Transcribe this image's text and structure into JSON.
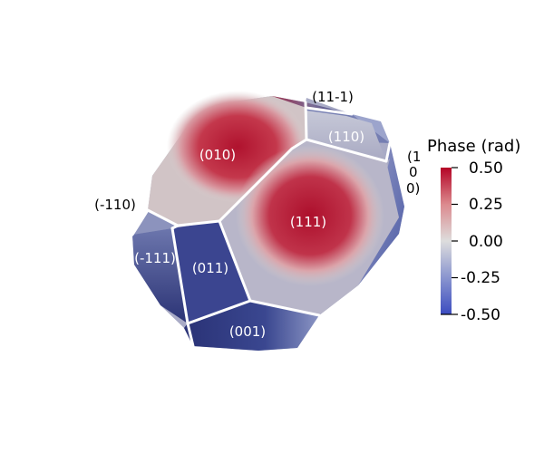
{
  "facet_labels": {
    "f010": "(010)",
    "f111": "(111)",
    "f110": "(110)",
    "f11m1": "(11-1)",
    "fm110": "(-110)",
    "fm111": "(-111)",
    "f011": "(011)",
    "f001": "(001)",
    "side_1": "(1",
    "side_2": "0",
    "side_3": "0)"
  },
  "colorbar": {
    "title": "Phase (rad)",
    "ticks": [
      "0.50",
      "0.25",
      "0.00",
      "-0.25",
      "-0.50"
    ],
    "min": -0.5,
    "max": 0.5,
    "colors": {
      "high": "#b40426",
      "mid": "#dddddd",
      "low": "#3b4cc0"
    }
  }
}
